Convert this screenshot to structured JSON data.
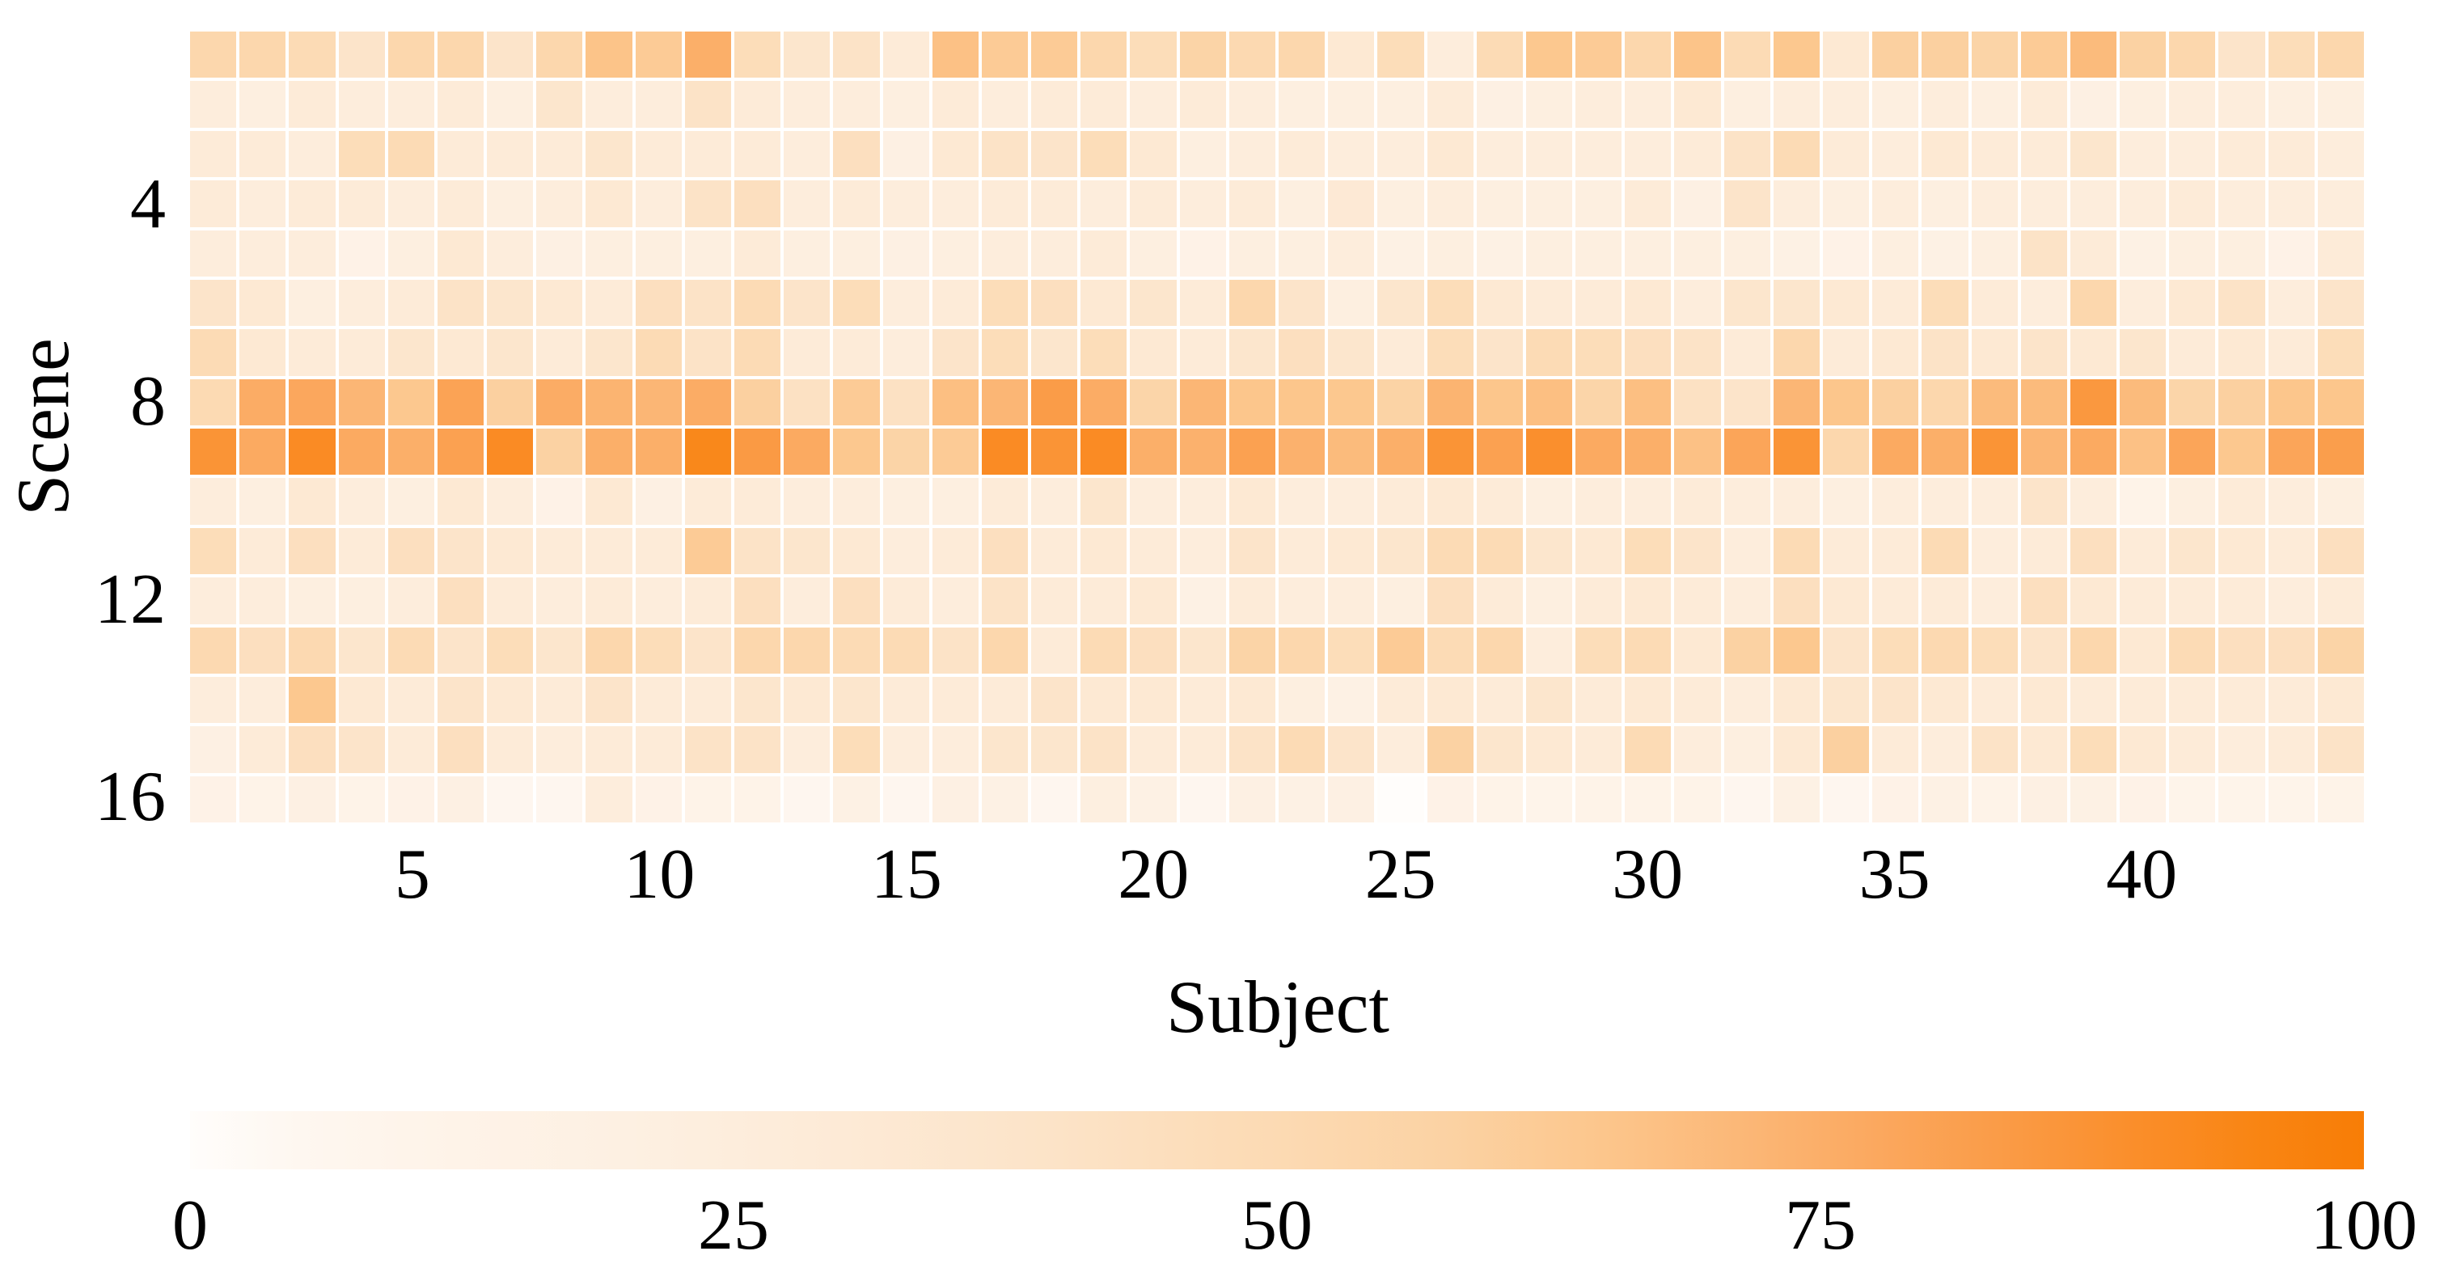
{
  "chart_data": {
    "type": "heatmap",
    "xlabel": "Subject",
    "ylabel": "Scene",
    "n_rows": 16,
    "n_cols": 44,
    "x_ticks": [
      5,
      10,
      15,
      20,
      25,
      30,
      35,
      40
    ],
    "y_ticks": [
      4,
      8,
      12,
      16
    ],
    "grid": "white-gaps",
    "legend_position": "bottom-colorbar",
    "colorbar": {
      "min": 0,
      "max": 100,
      "ticks": [
        0,
        25,
        50,
        75,
        100
      ],
      "stops": [
        {
          "v": 0,
          "c": "#fffdfb"
        },
        {
          "v": 5,
          "c": "#fef7f0"
        },
        {
          "v": 10,
          "c": "#fef4ea"
        },
        {
          "v": 20,
          "c": "#fdf0e2"
        },
        {
          "v": 30,
          "c": "#fdead6"
        },
        {
          "v": 40,
          "c": "#fce3c7"
        },
        {
          "v": 50,
          "c": "#fcdab3"
        },
        {
          "v": 58,
          "c": "#fbd2a3"
        },
        {
          "v": 65,
          "c": "#fcc68c"
        },
        {
          "v": 72,
          "c": "#fbb675"
        },
        {
          "v": 78,
          "c": "#fba75d"
        },
        {
          "v": 84,
          "c": "#fa9a44"
        },
        {
          "v": 90,
          "c": "#fa8d28"
        },
        {
          "v": 95,
          "c": "#f98513"
        },
        {
          "v": 100,
          "c": "#f87d06"
        }
      ]
    },
    "values": [
      [
        53,
        53,
        49,
        38,
        53,
        53,
        38,
        53,
        66,
        62,
        75,
        47,
        36,
        40,
        28,
        67,
        62,
        62,
        53,
        47,
        56,
        51,
        53,
        32,
        47,
        25,
        49,
        64,
        62,
        53,
        66,
        49,
        64,
        32,
        59,
        59,
        56,
        62,
        70,
        58,
        53,
        38,
        47,
        53
      ],
      [
        25,
        22,
        28,
        25,
        25,
        28,
        22,
        36,
        25,
        25,
        40,
        28,
        25,
        25,
        22,
        28,
        25,
        28,
        28,
        25,
        28,
        25,
        22,
        22,
        22,
        28,
        19,
        22,
        25,
        25,
        32,
        22,
        25,
        25,
        22,
        25,
        22,
        28,
        19,
        22,
        25,
        25,
        22,
        22
      ],
      [
        28,
        28,
        25,
        47,
        49,
        28,
        28,
        28,
        36,
        28,
        28,
        28,
        25,
        44,
        19,
        32,
        40,
        38,
        47,
        32,
        22,
        25,
        28,
        25,
        25,
        32,
        25,
        25,
        25,
        25,
        28,
        40,
        49,
        28,
        25,
        32,
        28,
        28,
        36,
        25,
        25,
        28,
        28,
        25
      ],
      [
        28,
        25,
        28,
        28,
        25,
        28,
        22,
        25,
        32,
        25,
        40,
        44,
        25,
        28,
        25,
        25,
        28,
        28,
        25,
        28,
        25,
        28,
        22,
        31,
        22,
        25,
        22,
        22,
        22,
        28,
        19,
        38,
        25,
        22,
        25,
        22,
        25,
        25,
        25,
        25,
        28,
        25,
        25,
        25
      ],
      [
        25,
        25,
        25,
        14,
        22,
        32,
        25,
        19,
        22,
        22,
        22,
        28,
        22,
        22,
        19,
        22,
        25,
        25,
        28,
        22,
        14,
        22,
        22,
        25,
        17,
        22,
        17,
        22,
        22,
        22,
        22,
        22,
        17,
        14,
        22,
        17,
        22,
        40,
        28,
        17,
        22,
        22,
        14,
        28
      ],
      [
        38,
        32,
        22,
        25,
        28,
        40,
        36,
        32,
        28,
        44,
        40,
        49,
        38,
        47,
        25,
        28,
        47,
        44,
        32,
        36,
        28,
        53,
        38,
        22,
        36,
        47,
        32,
        28,
        28,
        32,
        25,
        36,
        36,
        32,
        28,
        47,
        28,
        25,
        53,
        25,
        32,
        40,
        25,
        38
      ],
      [
        49,
        32,
        28,
        28,
        36,
        32,
        36,
        28,
        36,
        49,
        40,
        49,
        28,
        28,
        25,
        38,
        47,
        36,
        47,
        32,
        28,
        36,
        44,
        36,
        28,
        47,
        38,
        49,
        47,
        44,
        40,
        28,
        53,
        28,
        32,
        40,
        32,
        38,
        32,
        36,
        28,
        32,
        28,
        47
      ],
      [
        50,
        76,
        78,
        72,
        64,
        80,
        59,
        76,
        73,
        72,
        76,
        59,
        42,
        62,
        42,
        68,
        72,
        83,
        76,
        55,
        72,
        65,
        65,
        64,
        57,
        73,
        65,
        68,
        55,
        68,
        42,
        38,
        72,
        65,
        59,
        53,
        70,
        70,
        85,
        70,
        55,
        59,
        65,
        65
      ],
      [
        87,
        77,
        91,
        77,
        75,
        81,
        91,
        58,
        75,
        75,
        93,
        84,
        77,
        64,
        56,
        62,
        91,
        87,
        91,
        75,
        74,
        81,
        74,
        70,
        75,
        87,
        81,
        89,
        77,
        75,
        67,
        79,
        87,
        53,
        77,
        75,
        87,
        72,
        77,
        67,
        79,
        64,
        79,
        82
      ],
      [
        25,
        22,
        32,
        25,
        22,
        32,
        25,
        14,
        32,
        19,
        28,
        28,
        25,
        25,
        22,
        22,
        28,
        25,
        36,
        25,
        25,
        32,
        25,
        25,
        28,
        32,
        28,
        22,
        25,
        25,
        28,
        25,
        25,
        22,
        25,
        25,
        25,
        38,
        25,
        12,
        22,
        28,
        25,
        22
      ],
      [
        47,
        28,
        44,
        28,
        44,
        38,
        32,
        28,
        28,
        28,
        62,
        40,
        36,
        32,
        25,
        28,
        44,
        28,
        32,
        28,
        25,
        38,
        28,
        32,
        36,
        49,
        49,
        36,
        32,
        47,
        38,
        25,
        49,
        28,
        28,
        49,
        25,
        28,
        44,
        28,
        36,
        32,
        28,
        44
      ],
      [
        25,
        25,
        22,
        22,
        25,
        44,
        28,
        25,
        28,
        25,
        28,
        44,
        25,
        44,
        28,
        25,
        40,
        28,
        28,
        32,
        17,
        28,
        25,
        25,
        22,
        44,
        28,
        22,
        28,
        32,
        28,
        25,
        44,
        32,
        28,
        28,
        25,
        44,
        32,
        28,
        28,
        28,
        25,
        28
      ],
      [
        51,
        44,
        51,
        36,
        49,
        38,
        47,
        36,
        53,
        47,
        38,
        53,
        53,
        49,
        49,
        40,
        53,
        28,
        49,
        44,
        36,
        56,
        53,
        47,
        62,
        49,
        53,
        25,
        47,
        49,
        32,
        58,
        64,
        38,
        47,
        51,
        47,
        38,
        53,
        32,
        49,
        44,
        44,
        56
      ],
      [
        25,
        25,
        64,
        32,
        28,
        38,
        32,
        28,
        38,
        28,
        28,
        36,
        32,
        36,
        28,
        28,
        28,
        38,
        32,
        32,
        28,
        32,
        22,
        17,
        28,
        32,
        28,
        36,
        28,
        32,
        28,
        25,
        32,
        36,
        38,
        32,
        28,
        32,
        28,
        28,
        28,
        28,
        28,
        32
      ],
      [
        19,
        28,
        44,
        38,
        28,
        44,
        28,
        25,
        28,
        28,
        40,
        40,
        25,
        47,
        25,
        25,
        36,
        36,
        40,
        28,
        28,
        40,
        49,
        38,
        25,
        58,
        36,
        32,
        28,
        49,
        25,
        22,
        32,
        59,
        28,
        25,
        40,
        32,
        47,
        32,
        28,
        25,
        28,
        40
      ],
      [
        14,
        12,
        19,
        12,
        14,
        19,
        6,
        6,
        25,
        14,
        12,
        12,
        6,
        17,
        6,
        19,
        17,
        6,
        22,
        17,
        6,
        19,
        17,
        19,
        0,
        14,
        12,
        10,
        12,
        12,
        12,
        6,
        17,
        6,
        14,
        17,
        12,
        19,
        17,
        14,
        10,
        10,
        10,
        12
      ]
    ]
  }
}
